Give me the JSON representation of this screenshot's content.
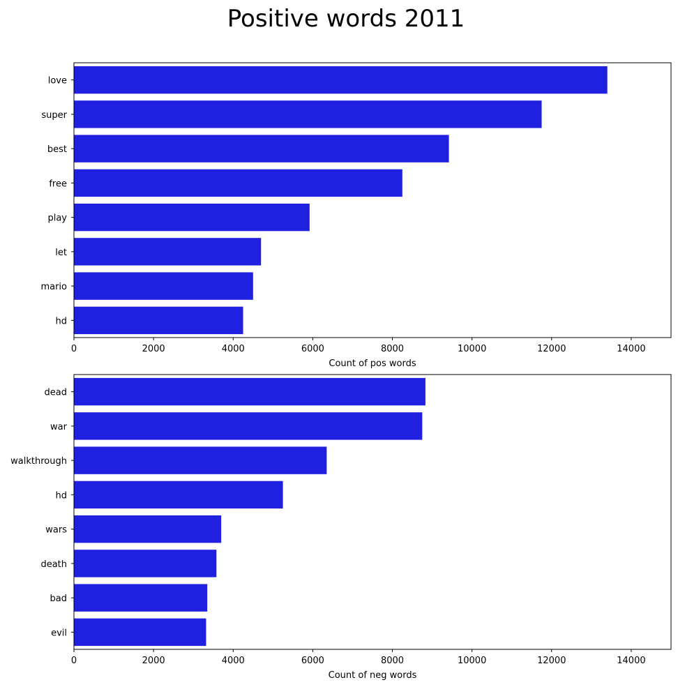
{
  "suptitle": "Positive words 2011",
  "chart_data": [
    {
      "type": "bar",
      "orientation": "horizontal",
      "categories": [
        "love",
        "super",
        "best",
        "free",
        "play",
        "let",
        "mario",
        "hd"
      ],
      "values": [
        13400,
        11750,
        9420,
        8250,
        5920,
        4700,
        4500,
        4250
      ],
      "xlabel": "Count of pos words",
      "ylabel": "",
      "xlim": [
        0,
        15000
      ],
      "xticks": [
        0,
        2000,
        4000,
        6000,
        8000,
        10000,
        12000,
        14000
      ],
      "grid": false,
      "color": "#2020e0"
    },
    {
      "type": "bar",
      "orientation": "horizontal",
      "categories": [
        "dead",
        "war",
        "walkthrough",
        "hd",
        "wars",
        "death",
        "bad",
        "evil"
      ],
      "values": [
        8830,
        8750,
        6350,
        5250,
        3700,
        3580,
        3350,
        3320
      ],
      "xlabel": "Count of neg words",
      "ylabel": "",
      "xlim": [
        0,
        15000
      ],
      "xticks": [
        0,
        2000,
        4000,
        6000,
        8000,
        10000,
        12000,
        14000
      ],
      "grid": false,
      "color": "#2020e0"
    }
  ]
}
